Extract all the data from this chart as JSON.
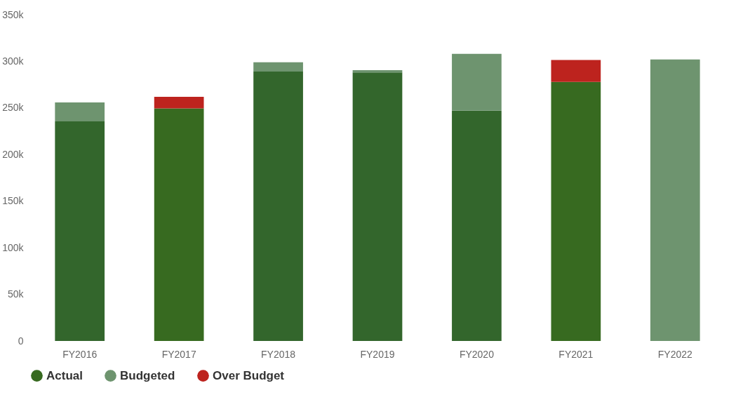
{
  "chart_data": {
    "type": "bar",
    "stacked": true,
    "categories": [
      "FY2016",
      "FY2017",
      "FY2018",
      "FY2019",
      "FY2020",
      "FY2021",
      "FY2022"
    ],
    "series": [
      {
        "name": "Actual",
        "color": "#376a20",
        "colors": [
          "#33662c",
          "#376a20",
          "#33662c",
          "#33662c",
          "#33662c",
          "#376a20",
          null
        ],
        "values": [
          235.5,
          249.5,
          289,
          288,
          247,
          278,
          null
        ]
      },
      {
        "name": "Budgeted",
        "color": "#6e946f",
        "values": [
          20.5,
          null,
          10,
          2.5,
          61,
          null,
          302
        ]
      },
      {
        "name": "Over Budget",
        "color": "#bd231e",
        "values": [
          null,
          12.5,
          null,
          null,
          null,
          23.5,
          null
        ]
      }
    ],
    "ylim": [
      0,
      350
    ],
    "yticks": [
      {
        "value": 0,
        "label": "0"
      },
      {
        "value": 50,
        "label": "50k"
      },
      {
        "value": 100,
        "label": "100k"
      },
      {
        "value": 150,
        "label": "150k"
      },
      {
        "value": 200,
        "label": "200k"
      },
      {
        "value": 250,
        "label": "250k"
      },
      {
        "value": 300,
        "label": "300k"
      },
      {
        "value": 350,
        "label": "350k"
      }
    ],
    "grid": false,
    "legend": "bottom"
  }
}
